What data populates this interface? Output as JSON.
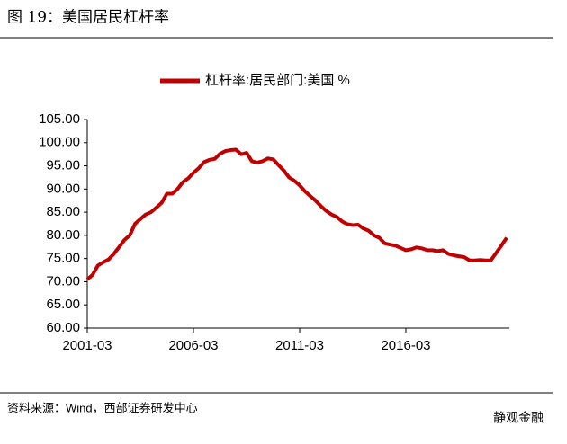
{
  "chart_data": {
    "type": "line",
    "title": "图 19：美国居民杠杆率",
    "source": "资料来源：Wind，西部证券研发中心",
    "watermark": "静观金融",
    "categories": [
      "2001-03",
      null,
      null,
      null,
      null,
      null,
      null,
      null,
      null,
      null,
      null,
      null,
      null,
      null,
      null,
      null,
      null,
      null,
      null,
      null,
      "2006-03",
      null,
      null,
      null,
      null,
      null,
      null,
      null,
      null,
      null,
      null,
      null,
      null,
      null,
      null,
      null,
      null,
      null,
      null,
      null,
      "2011-03",
      null,
      null,
      null,
      null,
      null,
      null,
      null,
      null,
      null,
      null,
      null,
      null,
      null,
      null,
      null,
      null,
      null,
      null,
      null,
      "2016-03",
      null,
      null,
      null,
      null,
      null,
      null,
      null,
      null,
      null,
      null,
      null,
      null,
      null,
      null,
      null,
      null,
      null,
      null,
      null
    ],
    "series": [
      {
        "name": "杠杆率:居民部门:美国 %",
        "color": "#c00000",
        "values": [
          70.5,
          71.5,
          73.5,
          74.2,
          74.8,
          76,
          77.5,
          79,
          80,
          82.5,
          83.5,
          84.5,
          85,
          86,
          87,
          89,
          89,
          90,
          91.5,
          92.3,
          93.5,
          94.5,
          95.8,
          96.3,
          96.5,
          97.6,
          98.2,
          98.4,
          98.5,
          97.5,
          97.8,
          96,
          95.7,
          96,
          96.6,
          96.4,
          95.2,
          94,
          92.5,
          91.8,
          90.8,
          89.5,
          88.5,
          87.5,
          86.3,
          85.3,
          84.5,
          84,
          83,
          82.4,
          82.2,
          82.3,
          81.5,
          81,
          80,
          79.5,
          78.3,
          78,
          77.8,
          77.3,
          76.8,
          77,
          77.4,
          77.2,
          76.8,
          76.8,
          76.6,
          76.8,
          76,
          75.7,
          75.5,
          75.3,
          74.6,
          74.6,
          74.7,
          74.6,
          74.6,
          76.2,
          77.8,
          79.5
        ]
      }
    ],
    "ylim": [
      60,
      105
    ],
    "yticks": [
      {
        "value": 60,
        "label": "60.00"
      },
      {
        "value": 65,
        "label": "65.00"
      },
      {
        "value": 70,
        "label": "70.00"
      },
      {
        "value": 75,
        "label": "75.00"
      },
      {
        "value": 80,
        "label": "80.00"
      },
      {
        "value": 85,
        "label": "85.00"
      },
      {
        "value": 90,
        "label": "90.00"
      },
      {
        "value": 95,
        "label": "95.00"
      },
      {
        "value": 100,
        "label": "100.00"
      },
      {
        "value": 105,
        "label": "105.00"
      }
    ],
    "grid": false
  }
}
